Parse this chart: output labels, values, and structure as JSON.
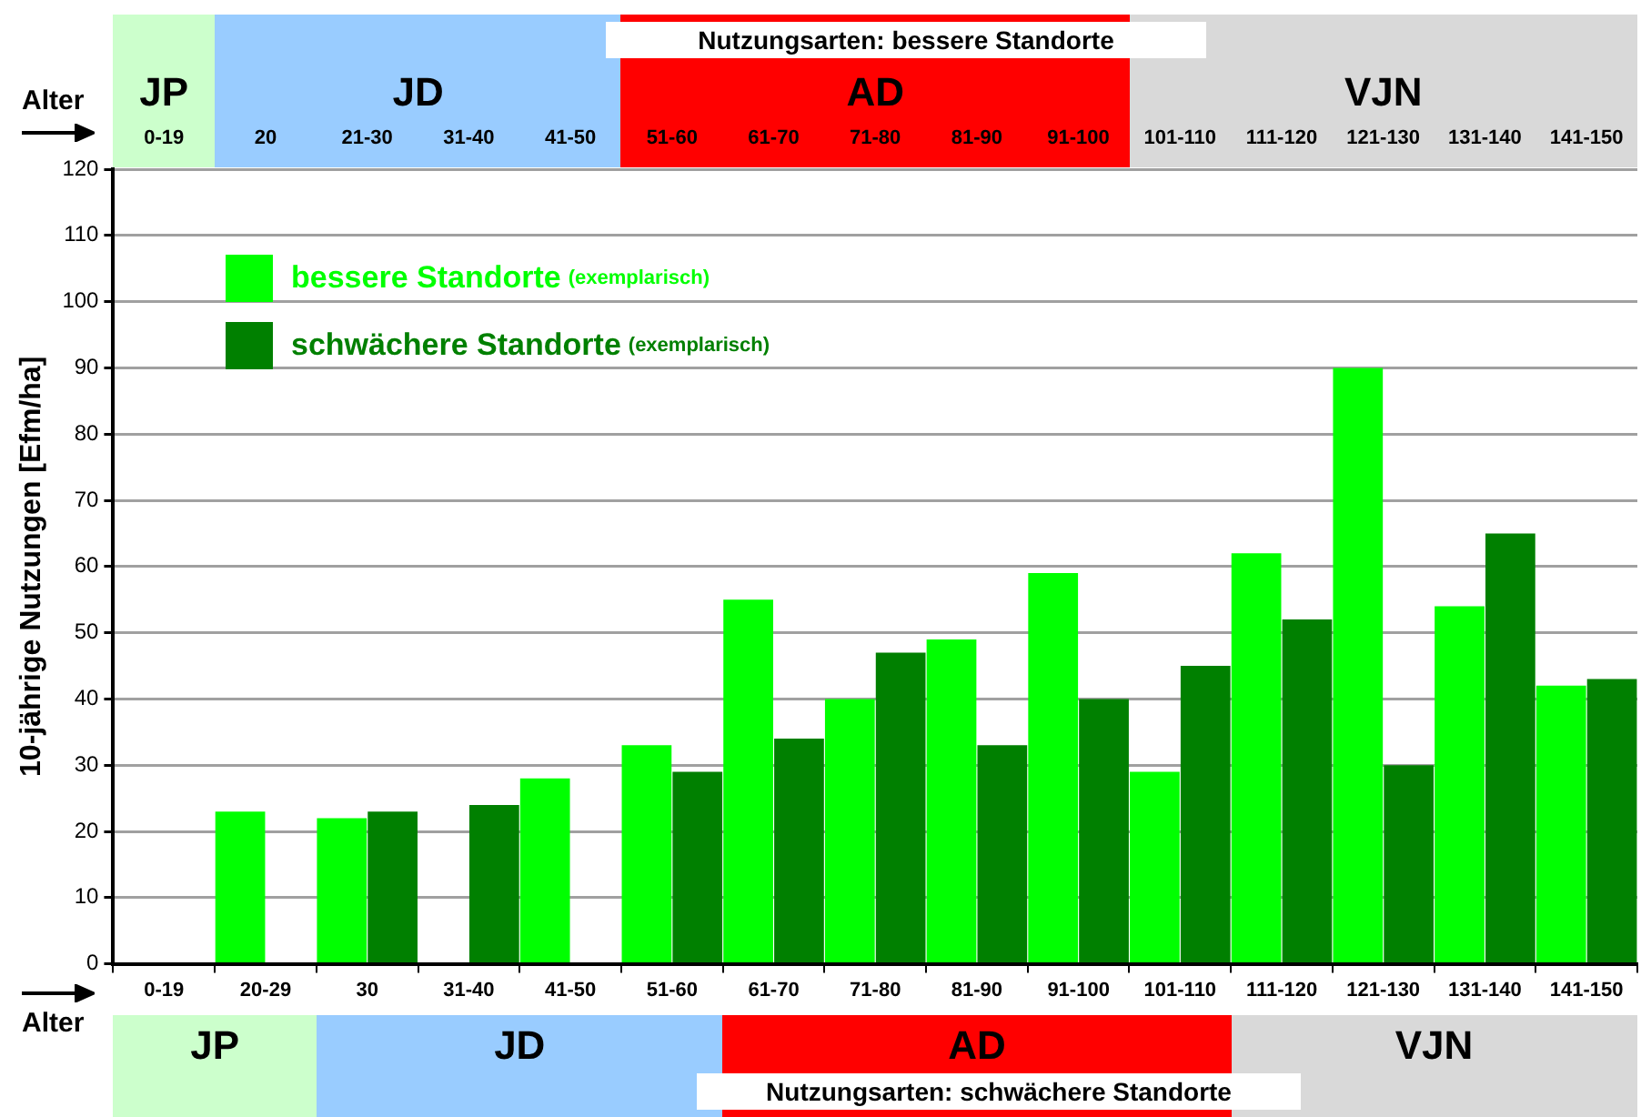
{
  "chart_data": {
    "type": "bar",
    "ylabel": "10-jährige Nutzungen [Efm/ha]",
    "categories": [
      "0-19",
      "20-29",
      "30",
      "31-40",
      "41-50",
      "51-60",
      "61-70",
      "71-80",
      "81-90",
      "91-100",
      "101-110",
      "111-120",
      "121-130",
      "131-140",
      "141-150"
    ],
    "series": [
      {
        "name": "bessere Standorte (exemplarisch)",
        "color": "#00ff00",
        "values": [
          null,
          23,
          22,
          null,
          28,
          33,
          55,
          40,
          49,
          59,
          29,
          62,
          90,
          54,
          42
        ]
      },
      {
        "name": "schwächere Standorte (exemplarisch)",
        "color": "#008000",
        "values": [
          null,
          null,
          23,
          24,
          null,
          29,
          34,
          47,
          33,
          40,
          45,
          52,
          30,
          65,
          43
        ]
      }
    ],
    "ylim": [
      0,
      120
    ],
    "yticks": [
      0,
      10,
      20,
      30,
      40,
      50,
      60,
      70,
      80,
      90,
      100,
      110,
      120
    ],
    "grid": "y",
    "legend": "top left",
    "annotations": [
      "Nutzungsarten: bessere Standorte",
      "Alter",
      "JP",
      "JD",
      "AD",
      "VJN",
      "0-19",
      "20",
      "21-30",
      "31-40",
      "41-50",
      "51-60",
      "61-70",
      "71-80",
      "81-90",
      "91-100",
      "101-110",
      "111-120",
      "121-130",
      "131-140",
      "141-150",
      "Alter",
      "JP",
      "JD",
      "AD",
      "VJN",
      "Nutzungsarten: schwächere Standorte"
    ]
  }
}
